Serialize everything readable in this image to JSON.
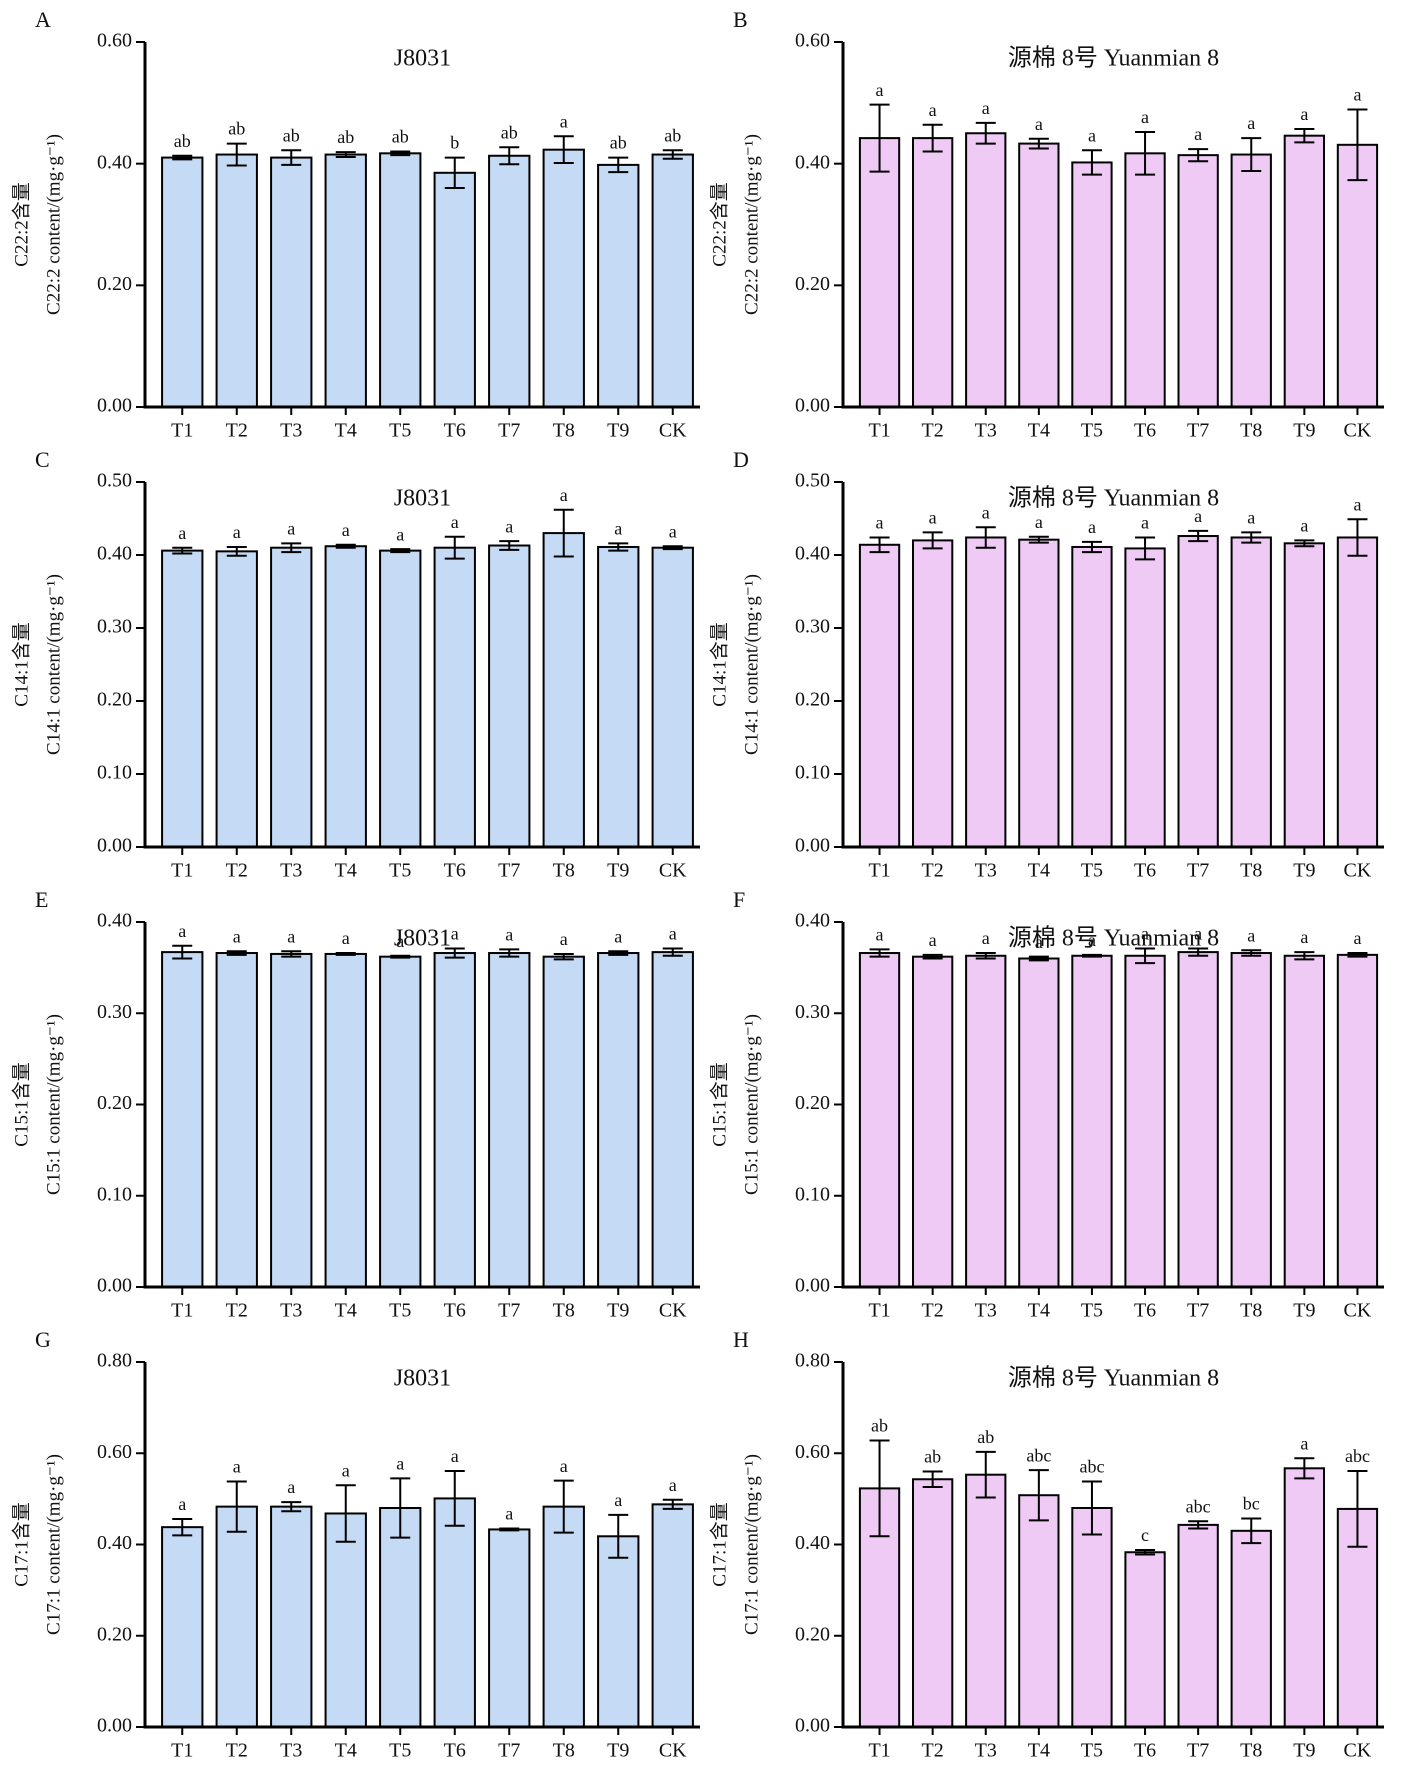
{
  "chart_data": [
    {
      "type": "bar",
      "panel": "A",
      "title": "J8031",
      "ylabel": [
        "C22:2含量",
        "C22:2 content/(mg·g⁻¹)"
      ],
      "color": "#c5dbf5",
      "categories": [
        "T1",
        "T2",
        "T3",
        "T4",
        "T5",
        "T6",
        "T7",
        "T8",
        "T9",
        "CK"
      ],
      "values": [
        0.41,
        0.415,
        0.41,
        0.415,
        0.417,
        0.385,
        0.413,
        0.423,
        0.398,
        0.415
      ],
      "errors": [
        0.003,
        0.018,
        0.012,
        0.004,
        0.003,
        0.025,
        0.014,
        0.022,
        0.012,
        0.007
      ],
      "letters": [
        "ab",
        "ab",
        "ab",
        "ab",
        "ab",
        "b",
        "ab",
        "a",
        "ab",
        "ab"
      ],
      "ylim": [
        0,
        0.6
      ],
      "yticks": [
        {
          "value": 0,
          "label": "0.00"
        },
        {
          "value": 0.2,
          "label": "0.20"
        },
        {
          "value": 0.4,
          "label": "0.40"
        },
        {
          "value": 0.6,
          "label": "0.60"
        }
      ]
    },
    {
      "type": "bar",
      "panel": "B",
      "title": "源棉 8号 Yuanmian 8",
      "ylabel": [
        "C22:2含量",
        "C22:2 content/(mg·g⁻¹)"
      ],
      "color": "#eecaf5",
      "categories": [
        "T1",
        "T2",
        "T3",
        "T4",
        "T5",
        "T6",
        "T7",
        "T8",
        "T9",
        "CK"
      ],
      "values": [
        0.442,
        0.442,
        0.45,
        0.433,
        0.402,
        0.417,
        0.414,
        0.415,
        0.446,
        0.431
      ],
      "errors": [
        0.055,
        0.022,
        0.017,
        0.008,
        0.02,
        0.035,
        0.01,
        0.027,
        0.011,
        0.058
      ],
      "letters": [
        "a",
        "a",
        "a",
        "a",
        "a",
        "a",
        "a",
        "a",
        "a",
        "a"
      ],
      "ylim": [
        0,
        0.6
      ],
      "yticks": [
        {
          "value": 0,
          "label": "0.00"
        },
        {
          "value": 0.2,
          "label": "0.20"
        },
        {
          "value": 0.4,
          "label": "0.40"
        },
        {
          "value": 0.6,
          "label": "0.60"
        }
      ]
    },
    {
      "type": "bar",
      "panel": "C",
      "title": "J8031",
      "ylabel": [
        "C14:1含量",
        "C14:1 content/(mg·g⁻¹)"
      ],
      "color": "#c5dbf5",
      "categories": [
        "T1",
        "T2",
        "T3",
        "T4",
        "T5",
        "T6",
        "T7",
        "T8",
        "T9",
        "CK"
      ],
      "values": [
        0.406,
        0.405,
        0.41,
        0.412,
        0.406,
        0.41,
        0.413,
        0.43,
        0.411,
        0.41
      ],
      "errors": [
        0.004,
        0.006,
        0.006,
        0.002,
        0.002,
        0.015,
        0.006,
        0.032,
        0.005,
        0.002
      ],
      "letters": [
        "a",
        "a",
        "a",
        "a",
        "a",
        "a",
        "a",
        "a",
        "a",
        "a"
      ],
      "ylim": [
        0,
        0.5
      ],
      "yticks": [
        {
          "value": 0,
          "label": "0.00"
        },
        {
          "value": 0.1,
          "label": "0.10"
        },
        {
          "value": 0.2,
          "label": "0.20"
        },
        {
          "value": 0.3,
          "label": "0.30"
        },
        {
          "value": 0.4,
          "label": "0.40"
        },
        {
          "value": 0.5,
          "label": "0.50"
        }
      ]
    },
    {
      "type": "bar",
      "panel": "D",
      "title": "源棉 8号 Yuanmian 8",
      "ylabel": [
        "C14:1含量",
        "C14:1 content/(mg·g⁻¹)"
      ],
      "color": "#eecaf5",
      "categories": [
        "T1",
        "T2",
        "T3",
        "T4",
        "T5",
        "T6",
        "T7",
        "T8",
        "T9",
        "CK"
      ],
      "values": [
        0.414,
        0.42,
        0.424,
        0.421,
        0.411,
        0.409,
        0.426,
        0.424,
        0.416,
        0.424
      ],
      "errors": [
        0.01,
        0.011,
        0.014,
        0.004,
        0.007,
        0.015,
        0.007,
        0.007,
        0.004,
        0.025
      ],
      "letters": [
        "a",
        "a",
        "a",
        "a",
        "a",
        "a",
        "a",
        "a",
        "a",
        "a"
      ],
      "ylim": [
        0,
        0.5
      ],
      "yticks": [
        {
          "value": 0,
          "label": "0.00"
        },
        {
          "value": 0.1,
          "label": "0.10"
        },
        {
          "value": 0.2,
          "label": "0.20"
        },
        {
          "value": 0.3,
          "label": "0.30"
        },
        {
          "value": 0.4,
          "label": "0.40"
        },
        {
          "value": 0.5,
          "label": "0.50"
        }
      ]
    },
    {
      "type": "bar",
      "panel": "E",
      "title": "J8031",
      "ylabel": [
        "C15:1含量",
        "C15:1 content/(mg·g⁻¹)"
      ],
      "color": "#c5dbf5",
      "categories": [
        "T1",
        "T2",
        "T3",
        "T4",
        "T5",
        "T6",
        "T7",
        "T8",
        "T9",
        "CK"
      ],
      "values": [
        0.367,
        0.366,
        0.365,
        0.365,
        0.362,
        0.366,
        0.366,
        0.362,
        0.366,
        0.367
      ],
      "errors": [
        0.007,
        0.002,
        0.003,
        0.001,
        0.001,
        0.005,
        0.004,
        0.003,
        0.002,
        0.004
      ],
      "letters": [
        "a",
        "a",
        "a",
        "a",
        "a",
        "a",
        "a",
        "a",
        "a",
        "a"
      ],
      "ylim": [
        0,
        0.4
      ],
      "yticks": [
        {
          "value": 0,
          "label": "0.00"
        },
        {
          "value": 0.1,
          "label": "0.10"
        },
        {
          "value": 0.2,
          "label": "0.20"
        },
        {
          "value": 0.3,
          "label": "0.30"
        },
        {
          "value": 0.4,
          "label": "0.40"
        }
      ]
    },
    {
      "type": "bar",
      "panel": "F",
      "title": "源棉 8号 Yuanmian 8",
      "ylabel": [
        "C15:1含量",
        "C15:1 content/(mg·g⁻¹)"
      ],
      "color": "#eecaf5",
      "categories": [
        "T1",
        "T2",
        "T3",
        "T4",
        "T5",
        "T6",
        "T7",
        "T8",
        "T9",
        "CK"
      ],
      "values": [
        0.366,
        0.362,
        0.363,
        0.36,
        0.363,
        0.363,
        0.367,
        0.366,
        0.363,
        0.364
      ],
      "errors": [
        0.004,
        0.002,
        0.003,
        0.002,
        0.001,
        0.008,
        0.004,
        0.003,
        0.004,
        0.002
      ],
      "letters": [
        "a",
        "a",
        "a",
        "a",
        "a",
        "a",
        "a",
        "a",
        "a",
        "a"
      ],
      "ylim": [
        0,
        0.4
      ],
      "yticks": [
        {
          "value": 0,
          "label": "0.00"
        },
        {
          "value": 0.1,
          "label": "0.10"
        },
        {
          "value": 0.2,
          "label": "0.20"
        },
        {
          "value": 0.3,
          "label": "0.30"
        },
        {
          "value": 0.4,
          "label": "0.40"
        }
      ]
    },
    {
      "type": "bar",
      "panel": "G",
      "title": "J8031",
      "ylabel": [
        "C17:1含量",
        "C17:1 content/(mg·g⁻¹)"
      ],
      "color": "#c5dbf5",
      "categories": [
        "T1",
        "T2",
        "T3",
        "T4",
        "T5",
        "T6",
        "T7",
        "T8",
        "T9",
        "CK"
      ],
      "values": [
        0.438,
        0.483,
        0.483,
        0.468,
        0.48,
        0.501,
        0.433,
        0.483,
        0.418,
        0.488
      ],
      "errors": [
        0.018,
        0.055,
        0.01,
        0.062,
        0.065,
        0.06,
        0.002,
        0.057,
        0.047,
        0.01
      ],
      "letters": [
        "a",
        "a",
        "a",
        "a",
        "a",
        "a",
        "a",
        "a",
        "a",
        "a"
      ],
      "ylim": [
        0,
        0.8
      ],
      "yticks": [
        {
          "value": 0,
          "label": "0.00"
        },
        {
          "value": 0.2,
          "label": "0.20"
        },
        {
          "value": 0.4,
          "label": "0.40"
        },
        {
          "value": 0.6,
          "label": "0.60"
        },
        {
          "value": 0.8,
          "label": "0.80"
        }
      ]
    },
    {
      "type": "bar",
      "panel": "H",
      "title": "源棉 8号 Yuanmian 8",
      "ylabel": [
        "C17:1含量",
        "C17:1 content/(mg·g⁻¹)"
      ],
      "color": "#eecaf5",
      "categories": [
        "T1",
        "T2",
        "T3",
        "T4",
        "T5",
        "T6",
        "T7",
        "T8",
        "T9",
        "CK"
      ],
      "values": [
        0.523,
        0.543,
        0.553,
        0.508,
        0.48,
        0.383,
        0.443,
        0.43,
        0.567,
        0.478
      ],
      "errors": [
        0.105,
        0.017,
        0.05,
        0.055,
        0.058,
        0.005,
        0.008,
        0.027,
        0.022,
        0.083
      ],
      "letters": [
        "ab",
        "ab",
        "ab",
        "abc",
        "abc",
        "c",
        "abc",
        "bc",
        "a",
        "abc"
      ],
      "ylim": [
        0,
        0.8
      ],
      "yticks": [
        {
          "value": 0,
          "label": "0.00"
        },
        {
          "value": 0.2,
          "label": "0.20"
        },
        {
          "value": 0.4,
          "label": "0.40"
        },
        {
          "value": 0.6,
          "label": "0.60"
        },
        {
          "value": 0.8,
          "label": "0.80"
        }
      ]
    }
  ]
}
